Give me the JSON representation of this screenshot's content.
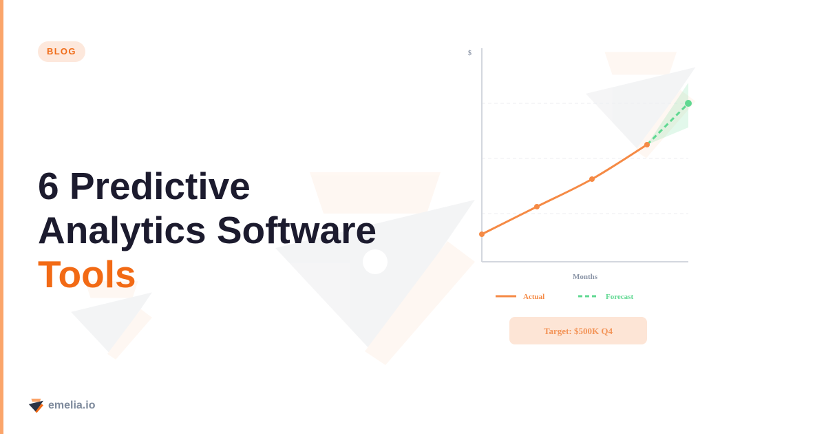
{
  "badge": "BLOG",
  "title": {
    "line1": "6 Predictive",
    "line2": "Analytics Software",
    "highlight": "Tools"
  },
  "brand": "emelia.io",
  "colors": {
    "accent": "#f26a15",
    "actual": "#f58a45",
    "forecast": "#5fd891",
    "text": "#1c1b2e"
  },
  "target": "Target: $500K Q4",
  "chart_data": {
    "type": "line",
    "ylabel": "$",
    "xlabel": "Months",
    "x": [
      0,
      1,
      2,
      3,
      3.75
    ],
    "xlim": [
      0,
      3.75
    ],
    "ylim": [
      0,
      3.875
    ],
    "grid": true,
    "gridlines": [
      0.875,
      1.875,
      2.875
    ],
    "legend": "bottom",
    "series": [
      {
        "name": "Actual",
        "x": [
          0,
          1,
          2,
          3
        ],
        "values": [
          0.5,
          1,
          1.5,
          2.125
        ],
        "style": "solid"
      },
      {
        "name": "Forecast",
        "x": [
          3,
          3.75
        ],
        "values": [
          2.125,
          2.875
        ],
        "style": "dashed",
        "band": [
          [
            2.125,
            2.125
          ],
          [
            2.4375,
            3.25
          ]
        ]
      }
    ]
  }
}
